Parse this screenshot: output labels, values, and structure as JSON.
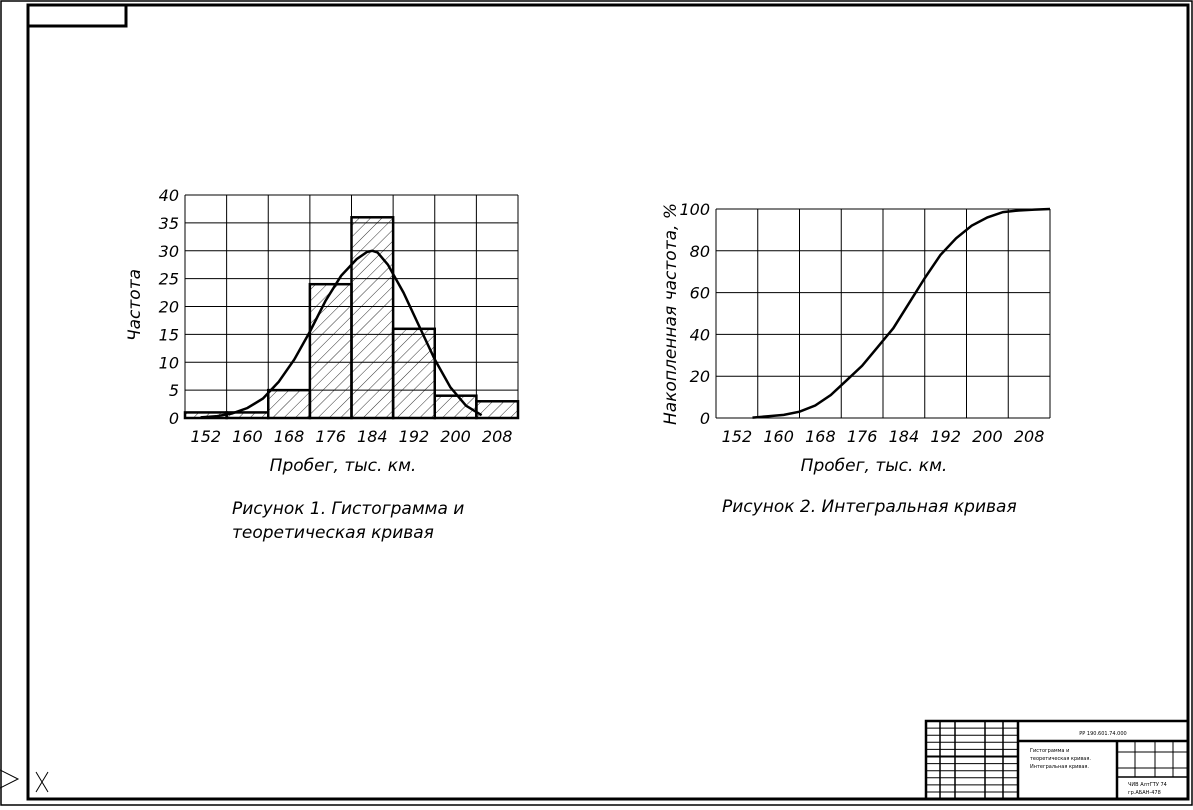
{
  "charts": {
    "histogram": {
      "ylabel": "Частота",
      "xlabel": "Пробег, тыс. км.",
      "caption_line1": "Рисунок 1. Гистограмма и",
      "caption_line2": "теоретическая кривая"
    },
    "cumulative": {
      "ylabel": "Накопленная   частота,  %",
      "xlabel": "Пробег, тыс. км.",
      "caption": "Рисунок 2. Интегральная кривая"
    }
  },
  "title_block": {
    "code": "РР 190.601.74.000",
    "title_line1": "Гистограмма и",
    "title_line2": "теоретическая кривая.",
    "title_line3": "Интегральная кривая.",
    "org_line1": "ЧИВ АлтГТУ 74",
    "org_line2": "гр.АБАН-478"
  },
  "chart_data": [
    {
      "type": "bar",
      "title": "Рисунок 1. Гистограмма и теоретическая кривая",
      "xlabel": "Пробег, тыс. км.",
      "ylabel": "Частота",
      "x_ticks": [
        152,
        160,
        168,
        176,
        184,
        192,
        200,
        208
      ],
      "y_ticks": [
        0,
        5,
        10,
        15,
        20,
        25,
        30,
        35,
        40
      ],
      "xlim": [
        148,
        212
      ],
      "ylim": [
        0,
        40
      ],
      "grid": true,
      "bins": [
        {
          "from": 148,
          "to": 156,
          "value": 1
        },
        {
          "from": 156,
          "to": 164,
          "value": 1
        },
        {
          "from": 164,
          "to": 172,
          "value": 5
        },
        {
          "from": 172,
          "to": 180,
          "value": 24
        },
        {
          "from": 180,
          "to": 188,
          "value": 36
        },
        {
          "from": 188,
          "to": 196,
          "value": 16
        },
        {
          "from": 196,
          "to": 204,
          "value": 4
        },
        {
          "from": 204,
          "to": 212,
          "value": 3
        }
      ],
      "curve": {
        "x": [
          151,
          154,
          157,
          160,
          163,
          166,
          169,
          172,
          175,
          178,
          181,
          183,
          184,
          185,
          187,
          190,
          193,
          196,
          199,
          202,
          205
        ],
        "y": [
          0.1,
          0.3,
          0.8,
          1.8,
          3.5,
          6.5,
          10.5,
          15.5,
          21,
          25.5,
          28.5,
          29.8,
          30,
          29.7,
          27.5,
          22.5,
          16.5,
          10.5,
          5.5,
          2.2,
          0.5
        ]
      }
    },
    {
      "type": "line",
      "title": "Рисунок 2. Интегральная кривая",
      "xlabel": "Пробег, тыс. км.",
      "ylabel": "Накопленная частота, %",
      "x_ticks": [
        152,
        160,
        168,
        176,
        184,
        192,
        200,
        208
      ],
      "y_ticks": [
        0,
        20,
        40,
        60,
        80,
        100
      ],
      "xlim": [
        148,
        212
      ],
      "ylim": [
        0,
        100
      ],
      "grid": true,
      "x": [
        155,
        158,
        161,
        164,
        167,
        170,
        173,
        176,
        179,
        182,
        185,
        188,
        191,
        194,
        197,
        200,
        203,
        206,
        209,
        212
      ],
      "y": [
        0.2,
        0.8,
        1.5,
        3,
        6,
        11,
        18,
        25,
        34,
        43,
        55,
        67,
        78,
        86,
        92,
        96,
        98.5,
        99.3,
        99.7,
        100
      ]
    }
  ]
}
